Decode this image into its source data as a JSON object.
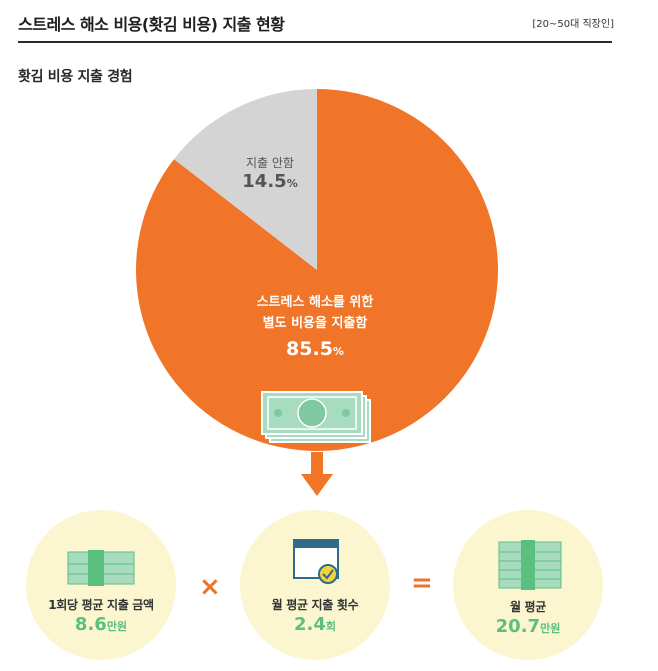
{
  "header": {
    "title": "스트레스 해소 비용(홧김 비용) 지출 현황",
    "tag": "[20~50대 직장인]"
  },
  "subtitle": "홧김 비용 지출 경험",
  "chart_data": {
    "type": "pie",
    "title": "홧김 비용 지출 경험",
    "slices": [
      {
        "label": "스트레스 해소를 위한 별도 비용을 지출함",
        "value": 85.5,
        "color": "#f07528"
      },
      {
        "label": "지출 안함",
        "value": 14.5,
        "color": "#d4d4d4"
      }
    ],
    "unit": "%"
  },
  "pie_labels": {
    "small_label": "지출 안함",
    "small_value": "14.5",
    "big_label_line1": "스트레스 해소를 위한",
    "big_label_line2": "별도 비용을 지출함",
    "big_value": "85.5",
    "percent_unit": "%"
  },
  "stats": {
    "per_time": {
      "label": "1회당 평균 지출 금액",
      "value": "8.6",
      "unit": "만원"
    },
    "monthly_count": {
      "label": "월 평균 지출 횟수",
      "value": "2.4",
      "unit": "회"
    },
    "monthly_avg": {
      "label": "월 평균",
      "value": "20.7",
      "unit": "만원"
    }
  },
  "operators": {
    "multiply": "×",
    "equals": "="
  },
  "colors": {
    "orange": "#f07528",
    "gray": "#d4d4d4",
    "green": "#5bbf7f",
    "money_green": "#a8dcc0",
    "circle_bg": "#fbf6cf"
  }
}
